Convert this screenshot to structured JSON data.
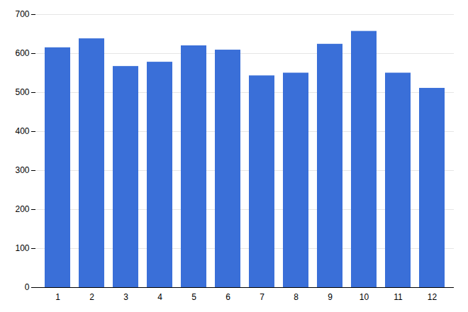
{
  "chart_data": {
    "type": "bar",
    "categories": [
      1,
      2,
      3,
      4,
      5,
      6,
      7,
      8,
      9,
      10,
      11,
      12
    ],
    "values": [
      615,
      638,
      567,
      578,
      620,
      609,
      543,
      550,
      624,
      657,
      550,
      511
    ],
    "color": "#3a6fd8",
    "ylim": [
      0,
      700
    ],
    "yticks": [
      0,
      100,
      200,
      300,
      400,
      500,
      600,
      700
    ],
    "grid": true
  }
}
